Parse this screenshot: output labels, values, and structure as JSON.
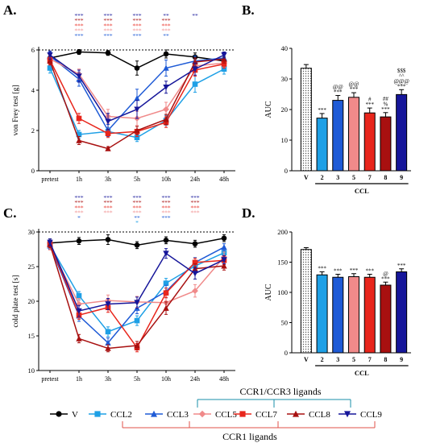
{
  "colors": {
    "V": "#000000",
    "CCL2": "#1ea0e6",
    "CCL3": "#1f5bd6",
    "CCL5": "#f08a8a",
    "CCL7": "#e8261c",
    "CCL8": "#a81010",
    "CCL9": "#16169a"
  },
  "panels": {
    "A": {
      "letter": "A."
    },
    "B": {
      "letter": "B."
    },
    "C": {
      "letter": "C."
    },
    "D": {
      "letter": "D."
    }
  },
  "legend": {
    "groups": [
      {
        "key": "V",
        "label": "V",
        "marker": "circle"
      },
      {
        "key": "CCL2",
        "label": "CCL2",
        "marker": "square"
      },
      {
        "key": "CCL3",
        "label": "CCL3",
        "marker": "triangle"
      },
      {
        "key": "CCL5",
        "label": "CCL5",
        "marker": "diamond"
      },
      {
        "key": "CCL7",
        "label": "CCL7",
        "marker": "square"
      },
      {
        "key": "CCL8",
        "label": "CCL8",
        "marker": "triangle"
      },
      {
        "key": "CCL9",
        "label": "CCL9",
        "marker": "triangle-down"
      }
    ],
    "ccr13_label": "CCR1/CCR3 ligands",
    "ccr1_label": "CCR1 ligands"
  },
  "chart_data": [
    {
      "panel": "A",
      "type": "line",
      "ylabel": "von Frey test [g]",
      "xlabel": "",
      "categories": [
        "pretest",
        "1h",
        "3h",
        "5h",
        "10h",
        "24h",
        "48h"
      ],
      "ylim": [
        0,
        6
      ],
      "yticks": [
        0,
        2,
        4,
        6
      ],
      "reference_line": 6,
      "series": [
        {
          "name": "V",
          "values": [
            5.6,
            5.9,
            5.85,
            5.1,
            5.8,
            5.65,
            5.45
          ],
          "err": [
            0.2,
            0.12,
            0.12,
            0.35,
            0.2,
            0.2,
            0.2
          ]
        },
        {
          "name": "CCL2",
          "values": [
            5.1,
            1.8,
            1.95,
            1.65,
            2.5,
            4.3,
            5.05
          ],
          "err": [
            0.25,
            0.2,
            0.2,
            0.2,
            0.25,
            0.4,
            0.25
          ]
        },
        {
          "name": "CCL3",
          "values": [
            5.7,
            4.55,
            2.0,
            3.6,
            5.1,
            5.45,
            5.6
          ],
          "err": [
            0.2,
            0.35,
            0.3,
            0.45,
            0.4,
            0.25,
            0.2
          ]
        },
        {
          "name": "CCL5",
          "values": [
            5.55,
            4.8,
            2.7,
            2.6,
            3.05,
            5.2,
            5.35
          ],
          "err": [
            0.2,
            0.25,
            0.35,
            0.35,
            0.35,
            0.3,
            0.2
          ]
        },
        {
          "name": "CCL7",
          "values": [
            5.5,
            2.6,
            1.85,
            1.95,
            2.4,
            5.0,
            5.3
          ],
          "err": [
            0.2,
            0.25,
            0.2,
            0.25,
            0.25,
            0.3,
            0.2
          ]
        },
        {
          "name": "CCL8",
          "values": [
            5.45,
            1.5,
            1.1,
            2.0,
            2.55,
            5.4,
            5.55
          ],
          "err": [
            0.2,
            0.2,
            0.1,
            0.2,
            0.25,
            0.2,
            0.2
          ]
        },
        {
          "name": "CCL9",
          "values": [
            5.75,
            4.7,
            2.45,
            3.05,
            4.15,
            5.05,
            5.75
          ],
          "err": [
            0.2,
            0.3,
            0.4,
            0.45,
            0.3,
            0.3,
            0.15
          ]
        }
      ],
      "significance_rows": [
        {
          "index": 1,
          "marks": [
            "***",
            "***",
            "***",
            "***",
            "***"
          ]
        },
        {
          "index": 2,
          "marks": [
            "***",
            "***",
            "***",
            "***",
            "***"
          ]
        },
        {
          "index": 3,
          "marks": [
            "***",
            "***",
            "***",
            "***",
            "***"
          ]
        },
        {
          "index": 4,
          "marks": [
            "**",
            "***",
            "***",
            "***",
            "**"
          ]
        },
        {
          "index": 5,
          "marks": [
            "**"
          ]
        }
      ]
    },
    {
      "panel": "B",
      "type": "bar",
      "ylabel": "AUC",
      "categories": [
        "V",
        "2",
        "3",
        "5",
        "7",
        "8",
        "9"
      ],
      "values": [
        33.5,
        17.2,
        23.0,
        24.0,
        18.9,
        17.6,
        24.9
      ],
      "errors": [
        1.2,
        1.5,
        1.6,
        1.5,
        1.6,
        1.4,
        1.6
      ],
      "ylim": [
        0,
        40
      ],
      "yticks": [
        0,
        10,
        20,
        30,
        40
      ],
      "group_label": "CCL",
      "annotations": [
        [],
        [
          "***"
        ],
        [
          "***",
          "@@"
        ],
        [
          "***",
          "@@"
        ],
        [
          "***",
          "#"
        ],
        [
          "***",
          "%",
          "##"
        ],
        [
          "***",
          "@@@",
          "^^",
          "$$$"
        ]
      ]
    },
    {
      "panel": "C",
      "type": "line",
      "ylabel": "cold plate test [s]",
      "xlabel": "",
      "categories": [
        "pretest",
        "1h",
        "3h",
        "5h",
        "10h",
        "24h",
        "48h"
      ],
      "ylim": [
        10,
        30
      ],
      "yticks": [
        10,
        15,
        20,
        25,
        30
      ],
      "reference_line": 30,
      "series": [
        {
          "name": "V",
          "values": [
            28.4,
            28.7,
            28.9,
            28.1,
            28.8,
            28.3,
            29.1
          ],
          "err": [
            0.6,
            0.5,
            0.7,
            0.5,
            0.5,
            0.5,
            0.5
          ]
        },
        {
          "name": "CCL2",
          "values": [
            28.1,
            20.8,
            15.6,
            17.2,
            22.6,
            25.1,
            27.0
          ],
          "err": [
            0.5,
            0.6,
            0.7,
            0.7,
            0.7,
            0.8,
            0.7
          ]
        },
        {
          "name": "CCL3",
          "values": [
            28.0,
            17.9,
            14.0,
            19.0,
            21.4,
            25.6,
            27.8
          ],
          "err": [
            0.5,
            0.8,
            0.7,
            0.8,
            0.9,
            0.7,
            0.5
          ]
        },
        {
          "name": "CCL5",
          "values": [
            27.9,
            19.6,
            20.1,
            19.9,
            19.8,
            21.5,
            26.4
          ],
          "err": [
            0.5,
            0.8,
            0.8,
            0.8,
            0.8,
            0.9,
            0.7
          ]
        },
        {
          "name": "CCL7",
          "values": [
            28.3,
            18.0,
            19.1,
            13.3,
            21.2,
            25.6,
            25.9
          ],
          "err": [
            0.5,
            0.6,
            0.7,
            0.6,
            0.7,
            0.6,
            0.6
          ]
        },
        {
          "name": "CCL8",
          "values": [
            28.2,
            14.6,
            13.2,
            13.6,
            19.0,
            24.7,
            25.1
          ],
          "err": [
            0.5,
            0.6,
            0.5,
            0.6,
            0.9,
            0.7,
            0.6
          ]
        },
        {
          "name": "CCL9",
          "values": [
            28.5,
            18.6,
            19.6,
            19.8,
            26.9,
            24.0,
            26.0
          ],
          "err": [
            0.5,
            0.8,
            0.8,
            0.8,
            0.7,
            0.8,
            0.6
          ]
        }
      ],
      "significance_rows": [
        {
          "index": 1,
          "marks": [
            "***",
            "***",
            "***",
            "***",
            "*"
          ]
        },
        {
          "index": 2,
          "marks": [
            "***",
            "***",
            "***",
            "***"
          ]
        },
        {
          "index": 3,
          "marks": [
            "***",
            "***",
            "***",
            "***",
            "**",
            "*"
          ]
        },
        {
          "index": 4,
          "marks": [
            "***",
            "***",
            "***",
            "***",
            "***"
          ]
        },
        {
          "index": 5,
          "marks": [
            "***",
            "***",
            "***",
            "***"
          ]
        }
      ]
    },
    {
      "panel": "D",
      "type": "bar",
      "ylabel": "AUC",
      "categories": [
        "V",
        "2",
        "3",
        "5",
        "7",
        "8",
        "9"
      ],
      "values": [
        171,
        129,
        125,
        126,
        125,
        112,
        134
      ],
      "errors": [
        3,
        5,
        5,
        5,
        5,
        5,
        5
      ],
      "ylim": [
        0,
        200
      ],
      "yticks": [
        0,
        50,
        100,
        150,
        200
      ],
      "group_label": "CCL",
      "annotations": [
        [],
        [
          "***"
        ],
        [
          "***"
        ],
        [
          "***"
        ],
        [
          "***"
        ],
        [
          "***",
          "@"
        ],
        [
          "***"
        ]
      ]
    }
  ]
}
